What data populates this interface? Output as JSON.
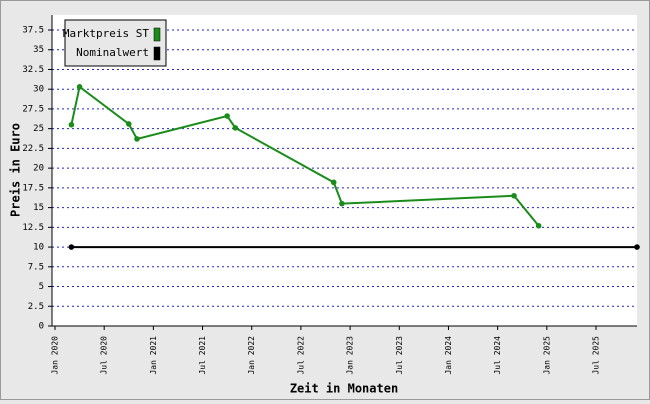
{
  "chart_data": {
    "type": "line",
    "y_label": "Preis in Euro",
    "x_label": "Zeit in Monaten",
    "series": [
      {
        "name": "Marktpreis ST",
        "color": "#1a8c1a",
        "x": [
          "2020-03",
          "2020-04",
          "2020-10",
          "2020-11",
          "2021-10",
          "2021-11",
          "2022-11",
          "2022-12",
          "2024-09",
          "2024-12"
        ],
        "values": [
          25.5,
          30.3,
          25.6,
          23.7,
          26.6,
          25.1,
          18.2,
          15.5,
          16.5,
          12.7
        ]
      },
      {
        "name": "Nominalwert",
        "color": "#000000",
        "x": [
          "2020-03",
          "2025-12"
        ],
        "values": [
          10,
          10
        ]
      }
    ],
    "xlim": [
      "2020-01",
      "2025-12"
    ],
    "xticks": [
      {
        "value": "2020-01",
        "label": "Jan 2020"
      },
      {
        "value": "2020-07",
        "label": "Jul 2020"
      },
      {
        "value": "2021-01",
        "label": "Jan 2021"
      },
      {
        "value": "2021-07",
        "label": "Jul 2021"
      },
      {
        "value": "2022-01",
        "label": "Jan 2022"
      },
      {
        "value": "2022-07",
        "label": "Jul 2022"
      },
      {
        "value": "2023-01",
        "label": "Jan 2023"
      },
      {
        "value": "2023-07",
        "label": "Jul 2023"
      },
      {
        "value": "2024-01",
        "label": "Jan 2024"
      },
      {
        "value": "2024-07",
        "label": "Jul 2024"
      },
      {
        "value": "2025-01",
        "label": "Jan 2025"
      },
      {
        "value": "2025-07",
        "label": "Jul 2025"
      }
    ],
    "ylim": [
      0,
      39.4
    ],
    "yticks": [
      0,
      2.5,
      5,
      7.5,
      10,
      12.5,
      15,
      17.5,
      20,
      22.5,
      25,
      27.5,
      30,
      32.5,
      35,
      37.5
    ],
    "grid": true,
    "legend": "top-left"
  }
}
